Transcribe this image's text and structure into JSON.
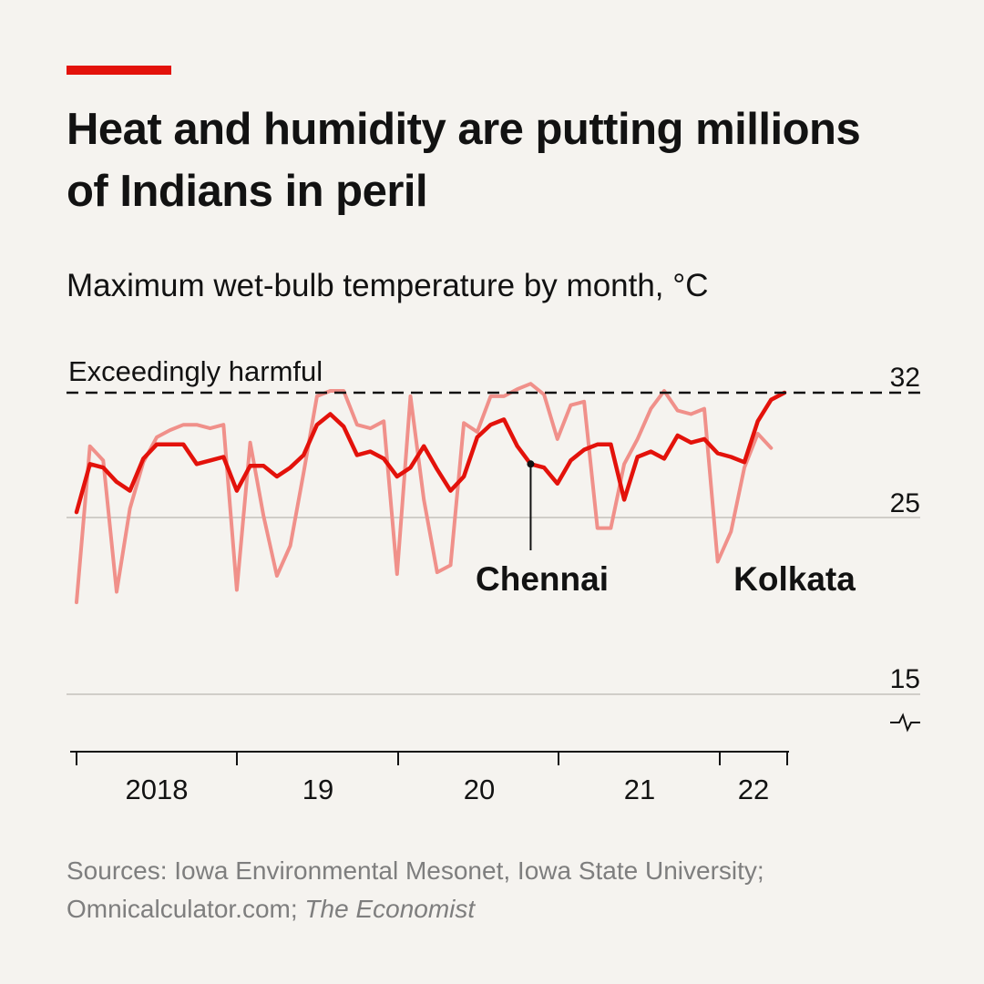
{
  "header": {
    "title": "Heat and humidity are putting millions of Indians in peril",
    "subtitle": "Maximum wet-bulb temperature by month, °C",
    "accent_color": "#e3120b"
  },
  "source": {
    "text": "Sources: Iowa Environmental Mesonet, Iowa State University; Omnicalculator.com;",
    "publication": "The Economist"
  },
  "chart_data": {
    "type": "line",
    "y_ticks": [
      15,
      25,
      32
    ],
    "x_tick_labels": [
      "2018",
      "19",
      "20",
      "21",
      "22"
    ],
    "threshold": {
      "value": 32,
      "label": "Exceedingly harmful"
    },
    "axis_break": true,
    "series": [
      {
        "name": "Chennai",
        "color": "#e3120b",
        "start": "2018-01",
        "values": [
          25.3,
          28.0,
          27.8,
          27.0,
          26.5,
          28.3,
          29.1,
          29.1,
          29.1,
          28.0,
          28.2,
          28.4,
          26.5,
          27.9,
          27.9,
          27.3,
          27.8,
          28.5,
          30.2,
          30.8,
          30.1,
          28.5,
          28.7,
          28.3,
          27.3,
          27.8,
          29.0,
          27.7,
          26.5,
          27.3,
          29.5,
          30.2,
          30.5,
          29.0,
          28.0,
          27.8,
          26.9,
          28.2,
          28.8,
          29.1,
          29.1,
          26.0,
          28.4,
          28.7,
          28.3,
          29.6,
          29.2,
          29.4,
          28.6,
          28.4,
          28.1,
          30.4,
          31.6,
          32.0
        ]
      },
      {
        "name": "Kolkata",
        "color": "#f0908a",
        "start": "2018-01",
        "values": [
          20.2,
          29.0,
          28.2,
          20.8,
          25.5,
          28.1,
          29.5,
          29.9,
          30.2,
          30.2,
          30.0,
          30.2,
          20.9,
          29.2,
          25.1,
          21.7,
          23.4,
          27.5,
          31.8,
          32.1,
          32.1,
          30.2,
          30.0,
          30.4,
          21.8,
          31.8,
          26.0,
          21.9,
          22.3,
          30.3,
          29.8,
          31.8,
          31.8,
          32.2,
          32.5,
          31.9,
          29.4,
          31.3,
          31.5,
          24.4,
          24.4,
          28.0,
          29.4,
          31.1,
          32.1,
          31.0,
          30.8,
          31.1,
          22.5,
          24.2,
          27.8,
          29.7,
          28.9,
          null
        ]
      }
    ],
    "series_labels": [
      {
        "name": "Chennai",
        "color": "#121212"
      },
      {
        "name": "Kolkata",
        "color": "#121212"
      }
    ]
  }
}
